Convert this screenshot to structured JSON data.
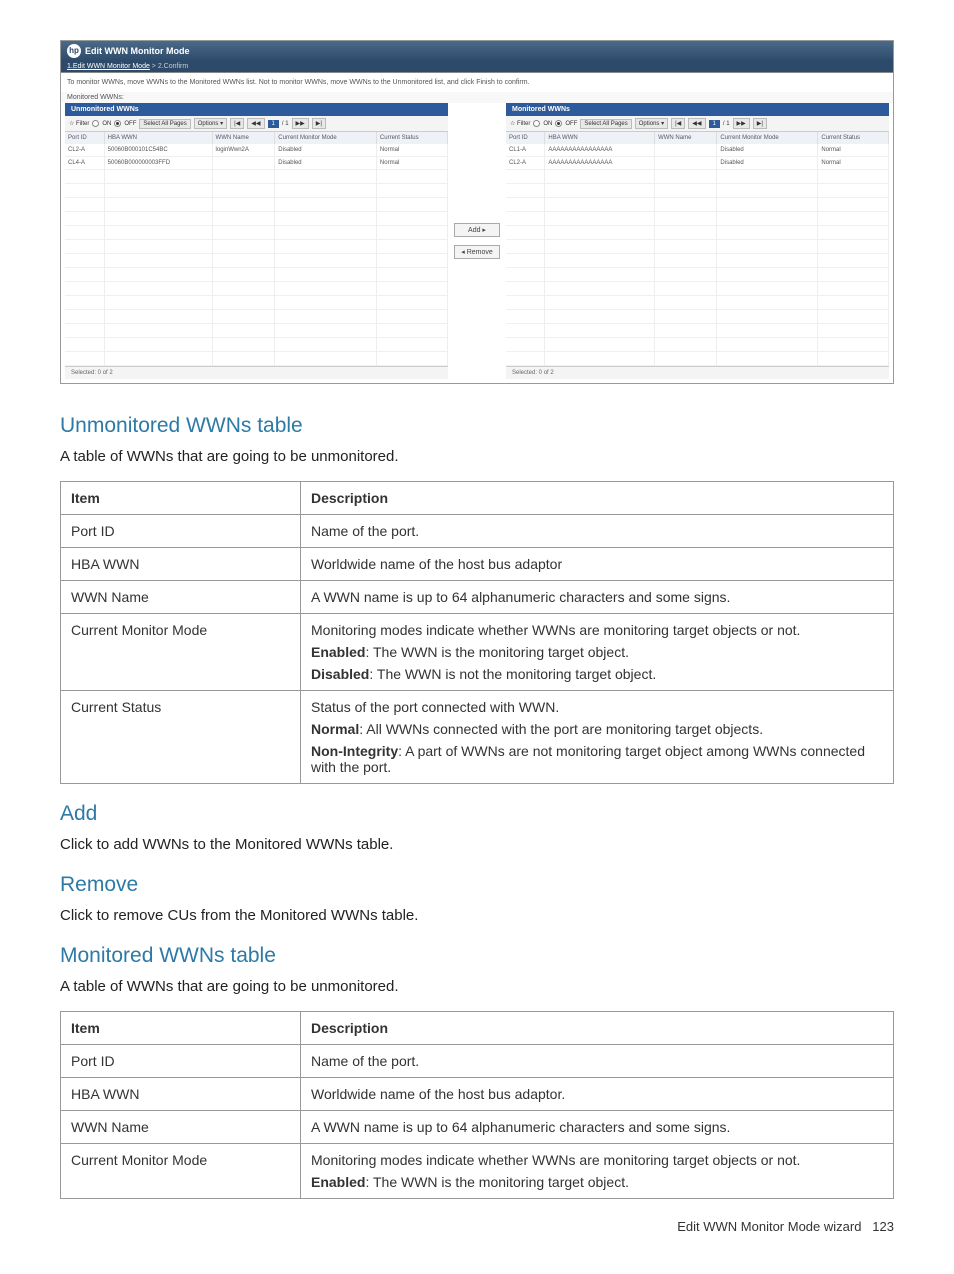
{
  "screenshot": {
    "title": "Edit WWN Monitor Mode",
    "breadcrumb_step1": "1.Edit WWN Monitor Mode",
    "breadcrumb_sep": " > ",
    "breadcrumb_step2": "2.Confirm",
    "instruction": "To monitor WWNs, move WWNs to the Monitored WWNs list. Not to monitor WWNs, move WWNs to the Unmonitored list, and click Finish to confirm.",
    "monitored_label": "Monitored WWNs:",
    "add_btn": "Add ▸",
    "remove_btn": "◂ Remove",
    "left": {
      "header": "Unmonitored WWNs",
      "filter_label": "☆ Filter",
      "on_label": "ON",
      "off_label": "OFF",
      "select_all": "Select All Pages",
      "options": "Options ▾",
      "pager_first": "|◀",
      "pager_prev": "◀◀",
      "page_text": "1",
      "page_of": "/ 1",
      "pager_next": "▶▶",
      "pager_last": "▶|",
      "cols": {
        "c1": "Port ID",
        "c2": "HBA WWN",
        "c3": "WWN Name",
        "c4": "Current Monitor Mode",
        "c5": "Current Status"
      },
      "rows": [
        {
          "port": "CL2-A",
          "hba": "50060B000101C54BC",
          "name": "loginWwn2A",
          "mode": "Disabled",
          "status": "Normal"
        },
        {
          "port": "CL4-A",
          "hba": "50060B000000003FFD",
          "name": "",
          "mode": "Disabled",
          "status": "Normal"
        }
      ],
      "selected": "Selected: 0  of  2"
    },
    "right": {
      "header": "Monitored WWNs",
      "filter_label": "☆ Filter",
      "on_label": "ON",
      "off_label": "OFF",
      "select_all": "Select All Pages",
      "options": "Options ▾",
      "pager_first": "|◀",
      "pager_prev": "◀◀",
      "page_text": "1",
      "page_of": "/ 1",
      "pager_next": "▶▶",
      "pager_last": "▶|",
      "cols": {
        "c1": "Port ID",
        "c2": "HBA WWN",
        "c3": "WWN Name",
        "c4": "Current Monitor Mode",
        "c5": "Current Status"
      },
      "rows": [
        {
          "port": "CL1-A",
          "hba": "AAAAAAAAAAAAAAAA",
          "name": "",
          "mode": "Disabled",
          "status": "Normal"
        },
        {
          "port": "CL2-A",
          "hba": "AAAAAAAAAAAAAAAA",
          "name": "",
          "mode": "Disabled",
          "status": "Normal"
        }
      ],
      "selected": "Selected: 0  of  2"
    }
  },
  "sections": {
    "unmon_title": "Unmonitored WWNs table",
    "unmon_intro": "A table of WWNs that are going to be unmonitored.",
    "add_title": "Add",
    "add_body": "Click to add WWNs to the Monitored WWNs table.",
    "remove_title": "Remove",
    "remove_body": "Click to remove CUs from the Monitored WWNs table.",
    "mon_title": "Monitored WWNs table",
    "mon_intro": "A table of WWNs that are going to be unmonitored."
  },
  "table1": {
    "h1": "Item",
    "h2": "Description",
    "r1c1": "Port ID",
    "r1c2": "Name of the port.",
    "r2c1": "HBA WWN",
    "r2c2": "Worldwide name of the host bus adaptor",
    "r3c1": "WWN Name",
    "r3c2": "A WWN name is up to 64 alphanumeric characters and some signs.",
    "r4c1": "Current Monitor Mode",
    "r4p1": "Monitoring modes indicate whether WWNs are monitoring target objects or not.",
    "r4p2a": "Enabled",
    "r4p2b": ": The WWN is the monitoring target object.",
    "r4p3a": "Disabled",
    "r4p3b": ": The WWN is not the monitoring target object.",
    "r5c1": "Current Status",
    "r5p1": "Status of the port connected with WWN.",
    "r5p2a": "Normal",
    "r5p2b": ": All WWNs connected with the port are monitoring target objects.",
    "r5p3a": "Non-Integrity",
    "r5p3b": ": A part of WWNs are not monitoring target object among WWNs connected with the port."
  },
  "table2": {
    "h1": "Item",
    "h2": "Description",
    "r1c1": "Port ID",
    "r1c2": "Name of the port.",
    "r2c1": "HBA WWN",
    "r2c2": "Worldwide name of the host bus adaptor.",
    "r3c1": "WWN Name",
    "r3c2": "A WWN name is up to 64 alphanumeric characters and some signs.",
    "r4c1": "Current Monitor Mode",
    "r4p1": "Monitoring modes indicate whether WWNs are monitoring target objects or not.",
    "r4p2a": "Enabled",
    "r4p2b": ": The WWN is the monitoring target object."
  },
  "footer": {
    "text": "Edit WWN Monitor Mode wizard",
    "page": "123"
  }
}
